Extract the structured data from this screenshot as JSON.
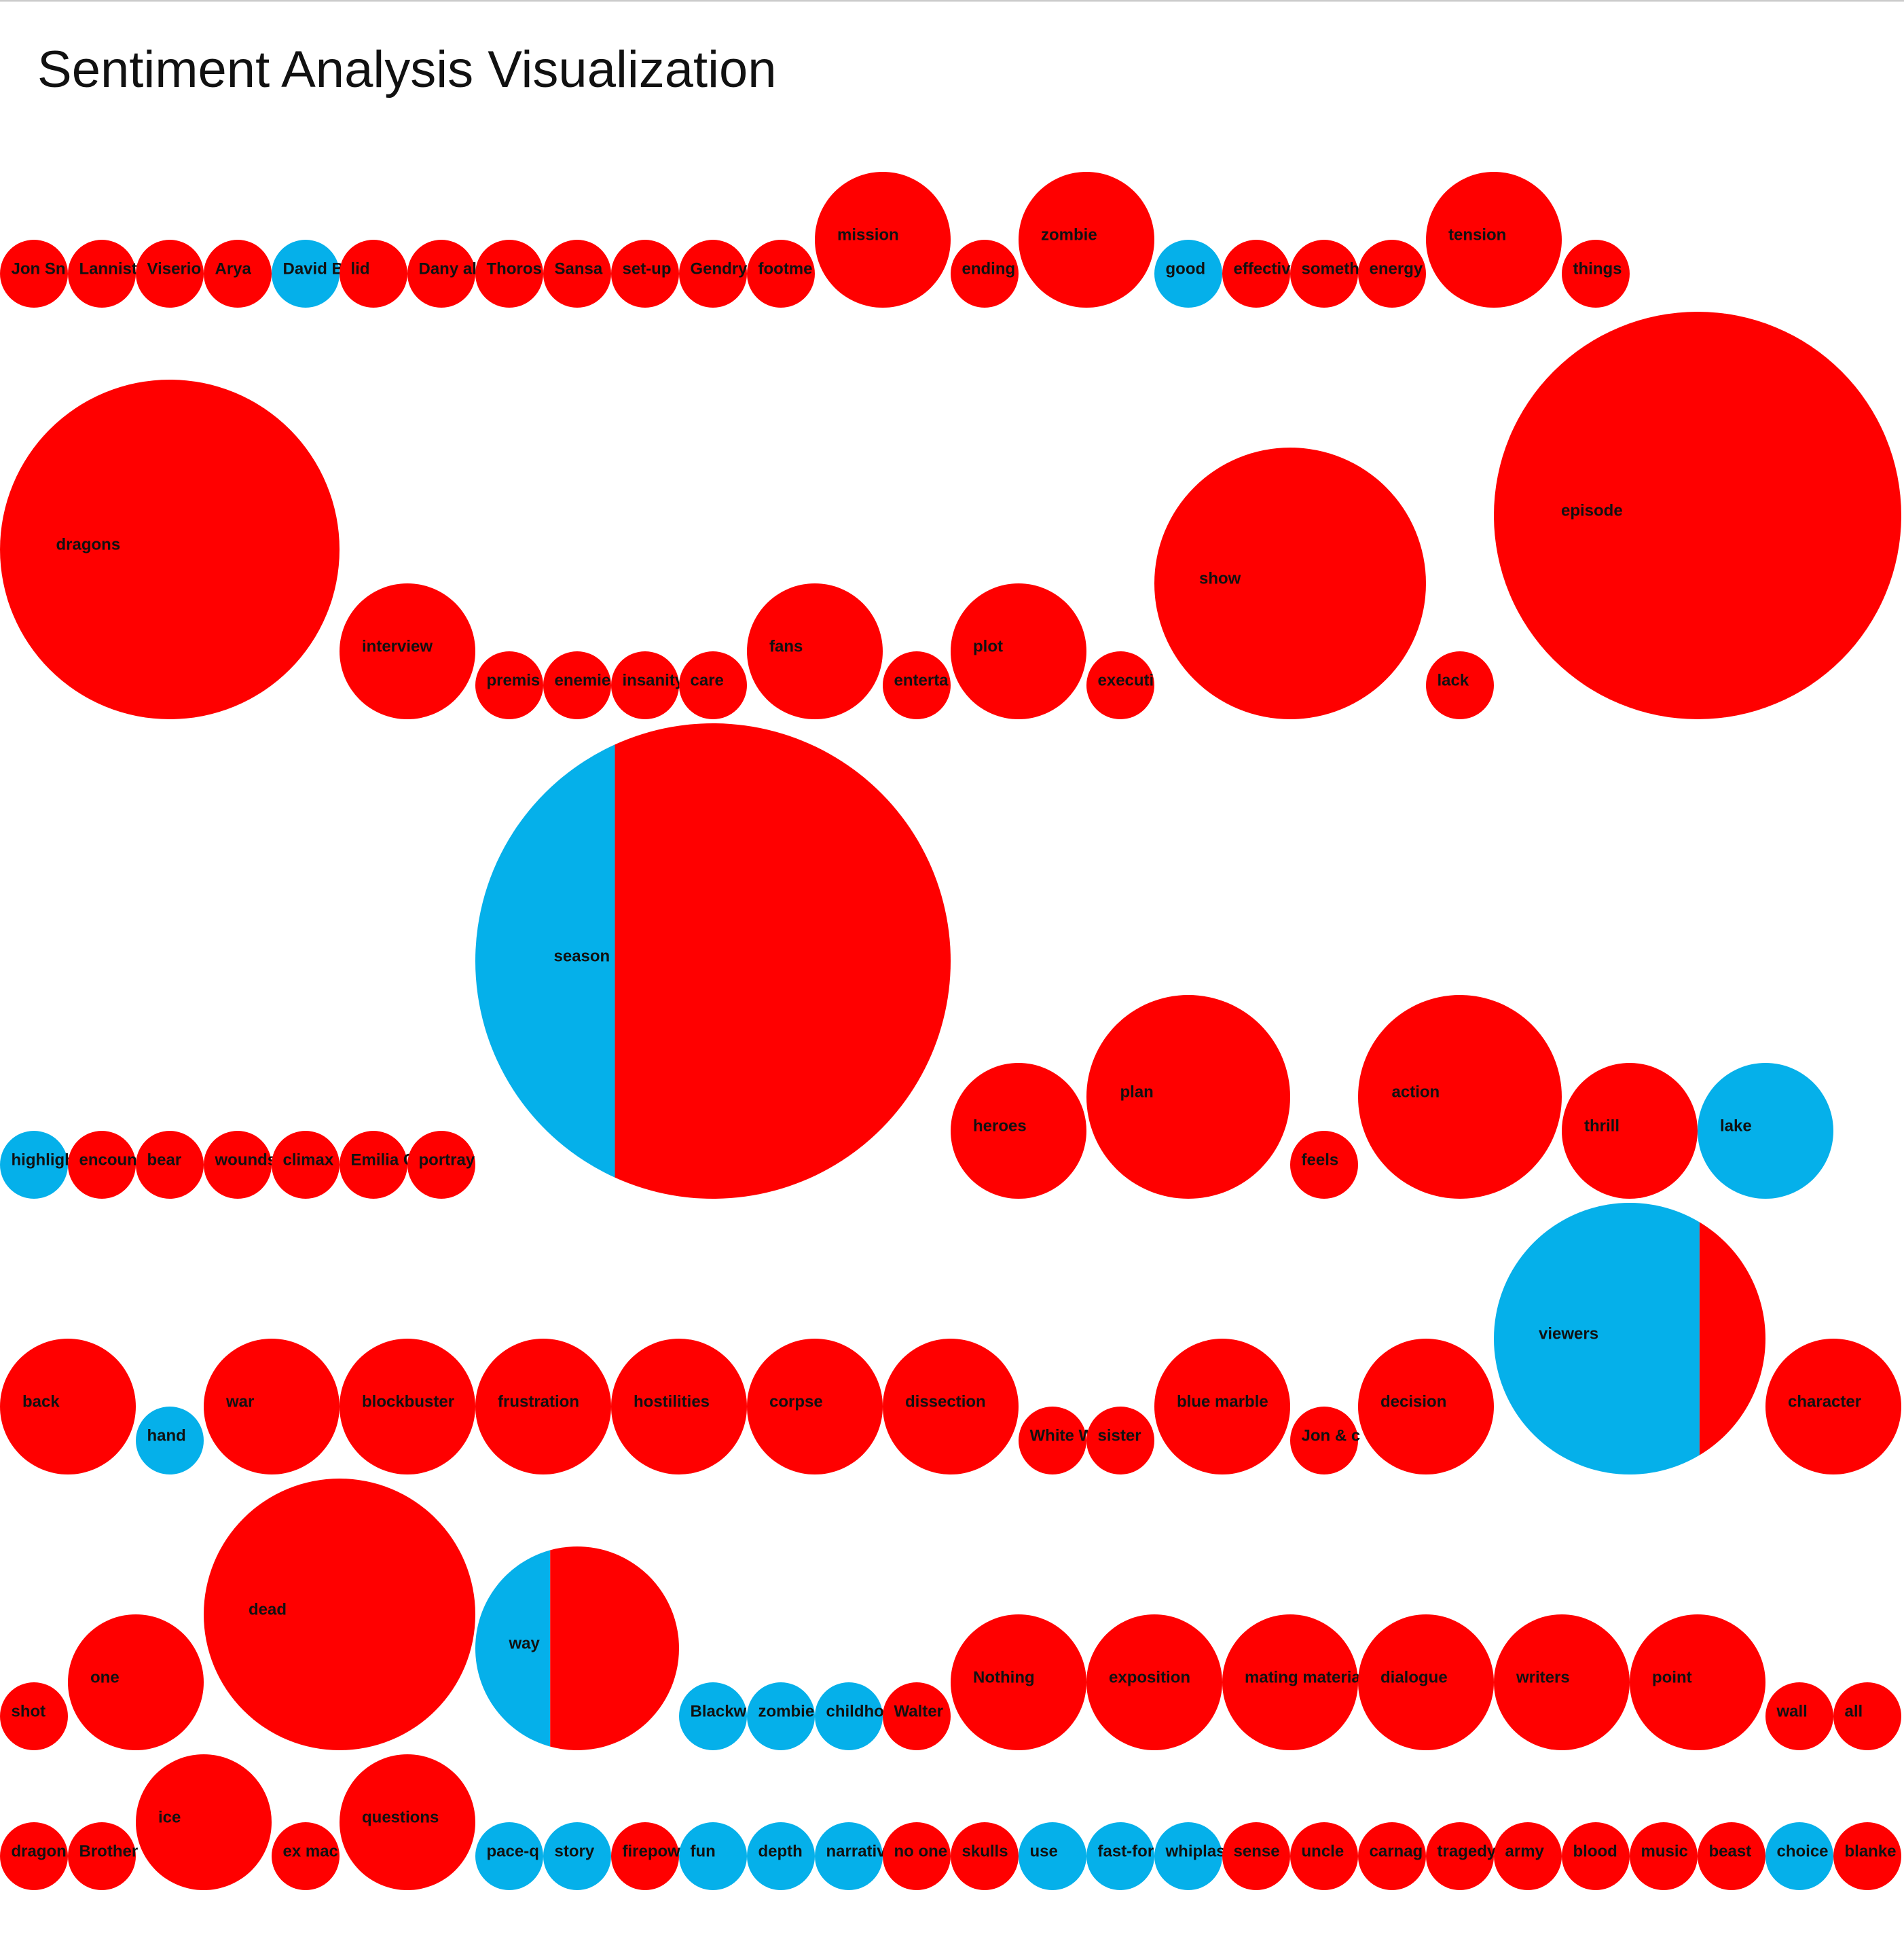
{
  "chart_data": {
    "type": "bubble",
    "title": "Sentiment Analysis Visualization",
    "colors": {
      "negative": "#ff0000",
      "positive": "#05b0ea"
    },
    "rows": [
      [
        {
          "word": "Jon Sn",
          "negative": 1,
          "positive": 0
        },
        {
          "word": "Lannist",
          "negative": 1,
          "positive": 0
        },
        {
          "word": "Viserio",
          "negative": 1,
          "positive": 0
        },
        {
          "word": "Arya",
          "negative": 1,
          "positive": 0
        },
        {
          "word": "David B",
          "negative": 0,
          "positive": 1
        },
        {
          "word": "lid",
          "negative": 1,
          "positive": 0
        },
        {
          "word": "Dany al",
          "negative": 1,
          "positive": 0
        },
        {
          "word": "Thoros",
          "negative": 1,
          "positive": 0
        },
        {
          "word": "Sansa",
          "negative": 1,
          "positive": 0
        },
        {
          "word": "set-up",
          "negative": 1,
          "positive": 0
        },
        {
          "word": "Gendry",
          "negative": 1,
          "positive": 0
        },
        {
          "word": "footme",
          "negative": 1,
          "positive": 0
        },
        {
          "word": "mission",
          "negative": 4,
          "positive": 0
        },
        {
          "word": "ending",
          "negative": 1,
          "positive": 0
        },
        {
          "word": "zombie",
          "negative": 4,
          "positive": 0
        },
        {
          "word": "good",
          "negative": 0,
          "positive": 1
        },
        {
          "word": "effectiv",
          "negative": 1,
          "positive": 0
        },
        {
          "word": "someth",
          "negative": 1,
          "positive": 0
        },
        {
          "word": "energy",
          "negative": 1,
          "positive": 0
        },
        {
          "word": "tension",
          "negative": 4,
          "positive": 0
        },
        {
          "word": "things",
          "negative": 1,
          "positive": 0
        }
      ],
      [
        {
          "word": "dragons",
          "negative": 25,
          "positive": 0
        },
        {
          "word": "interview",
          "negative": 4,
          "positive": 0
        },
        {
          "word": "premis",
          "negative": 1,
          "positive": 0
        },
        {
          "word": "enemie",
          "negative": 1,
          "positive": 0
        },
        {
          "word": "insanity",
          "negative": 1,
          "positive": 0
        },
        {
          "word": "care",
          "negative": 1,
          "positive": 0
        },
        {
          "word": "fans",
          "negative": 4,
          "positive": 0
        },
        {
          "word": "enterta",
          "negative": 1,
          "positive": 0
        },
        {
          "word": "plot",
          "negative": 4,
          "positive": 0
        },
        {
          "word": "executi",
          "negative": 1,
          "positive": 0
        },
        {
          "word": "show",
          "negative": 16,
          "positive": 0
        },
        {
          "word": "lack",
          "negative": 1,
          "positive": 0
        },
        {
          "word": "episode",
          "negative": 36,
          "positive": 0
        }
      ],
      [
        {
          "word": "highligh",
          "negative": 0,
          "positive": 1
        },
        {
          "word": "encoun",
          "negative": 1,
          "positive": 0
        },
        {
          "word": "bear",
          "negative": 1,
          "positive": 0
        },
        {
          "word": "wounds",
          "negative": 1,
          "positive": 0
        },
        {
          "word": "climax",
          "negative": 1,
          "positive": 0
        },
        {
          "word": "Emilia C",
          "negative": 1,
          "positive": 0
        },
        {
          "word": "portray",
          "negative": 1,
          "positive": 0
        },
        {
          "word": "season",
          "negative": 37,
          "positive": 12
        },
        {
          "word": "heroes",
          "negative": 4,
          "positive": 0
        },
        {
          "word": "plan",
          "negative": 9,
          "positive": 0
        },
        {
          "word": "feels",
          "negative": 1,
          "positive": 0
        },
        {
          "word": "action",
          "negative": 9,
          "positive": 0
        },
        {
          "word": "thrill",
          "negative": 4,
          "positive": 0
        },
        {
          "word": "lake",
          "negative": 0,
          "positive": 4
        }
      ],
      [
        {
          "word": "back",
          "negative": 4,
          "positive": 0
        },
        {
          "word": "hand",
          "negative": 0,
          "positive": 1
        },
        {
          "word": "war",
          "negative": 4,
          "positive": 0
        },
        {
          "word": "blockbuster",
          "negative": 4,
          "positive": 0
        },
        {
          "word": "frustration",
          "negative": 4,
          "positive": 0
        },
        {
          "word": "hostilities",
          "negative": 4,
          "positive": 0
        },
        {
          "word": "corpse",
          "negative": 4,
          "positive": 0
        },
        {
          "word": "dissection",
          "negative": 4,
          "positive": 0
        },
        {
          "word": "White W",
          "negative": 1,
          "positive": 0
        },
        {
          "word": "sister",
          "negative": 1,
          "positive": 0
        },
        {
          "word": "blue marble",
          "negative": 4,
          "positive": 0
        },
        {
          "word": "Jon & c",
          "negative": 1,
          "positive": 0
        },
        {
          "word": "decision",
          "negative": 4,
          "positive": 0
        },
        {
          "word": "viewers",
          "negative": 3,
          "positive": 13
        },
        {
          "word": "character",
          "negative": 4,
          "positive": 0
        }
      ],
      [
        {
          "word": "shot",
          "negative": 1,
          "positive": 0
        },
        {
          "word": "one",
          "negative": 4,
          "positive": 0
        },
        {
          "word": "dead",
          "negative": 16,
          "positive": 0
        },
        {
          "word": "way",
          "negative": 6,
          "positive": 3
        },
        {
          "word": "Blackw",
          "negative": 0,
          "positive": 1
        },
        {
          "word": "zombie",
          "negative": 0,
          "positive": 1
        },
        {
          "word": "childho",
          "negative": 0,
          "positive": 1
        },
        {
          "word": "Walter",
          "negative": 1,
          "positive": 0
        },
        {
          "word": "Nothing",
          "negative": 4,
          "positive": 0
        },
        {
          "word": "exposition",
          "negative": 4,
          "positive": 0
        },
        {
          "word": "mating materia",
          "negative": 4,
          "positive": 0
        },
        {
          "word": "dialogue",
          "negative": 4,
          "positive": 0
        },
        {
          "word": "writers",
          "negative": 4,
          "positive": 0
        },
        {
          "word": "point",
          "negative": 4,
          "positive": 0
        },
        {
          "word": "wall",
          "negative": 1,
          "positive": 0
        },
        {
          "word": "all",
          "negative": 1,
          "positive": 0
        }
      ],
      [
        {
          "word": "dragon",
          "negative": 1,
          "positive": 0
        },
        {
          "word": "Brother",
          "negative": 1,
          "positive": 0
        },
        {
          "word": "ice",
          "negative": 4,
          "positive": 0
        },
        {
          "word": "ex mac",
          "negative": 1,
          "positive": 0
        },
        {
          "word": "questions",
          "negative": 4,
          "positive": 0
        },
        {
          "word": "pace-q",
          "negative": 0,
          "positive": 1
        },
        {
          "word": "story",
          "negative": 0,
          "positive": 1
        },
        {
          "word": "firepow",
          "negative": 1,
          "positive": 0
        },
        {
          "word": "fun",
          "negative": 0,
          "positive": 1
        },
        {
          "word": "depth",
          "negative": 0,
          "positive": 1
        },
        {
          "word": "narrativ",
          "negative": 0,
          "positive": 1
        },
        {
          "word": "no one",
          "negative": 1,
          "positive": 0
        },
        {
          "word": "skulls",
          "negative": 1,
          "positive": 0
        },
        {
          "word": "use",
          "negative": 0,
          "positive": 1
        },
        {
          "word": "fast-for",
          "negative": 0,
          "positive": 1
        },
        {
          "word": "whiplas",
          "negative": 0,
          "positive": 1
        },
        {
          "word": "sense",
          "negative": 1,
          "positive": 0
        },
        {
          "word": "uncle",
          "negative": 1,
          "positive": 0
        },
        {
          "word": "carnag",
          "negative": 1,
          "positive": 0
        },
        {
          "word": "tragedy",
          "negative": 1,
          "positive": 0
        },
        {
          "word": "army",
          "negative": 1,
          "positive": 0
        },
        {
          "word": "blood",
          "negative": 1,
          "positive": 0
        },
        {
          "word": "music",
          "negative": 1,
          "positive": 0
        },
        {
          "word": "beast",
          "negative": 1,
          "positive": 0
        },
        {
          "word": "choice",
          "negative": 0,
          "positive": 1
        },
        {
          "word": "blanke",
          "negative": 1,
          "positive": 0
        }
      ]
    ]
  }
}
